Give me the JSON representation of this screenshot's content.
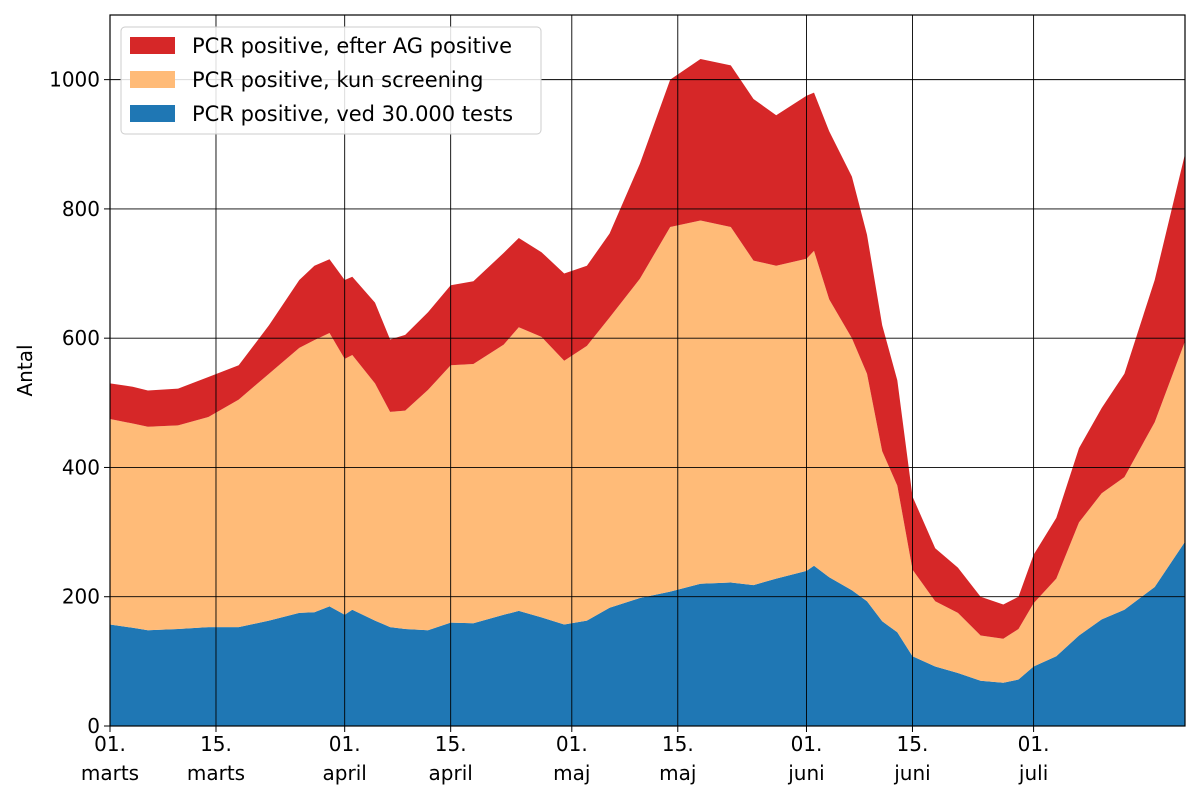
{
  "chart_data": {
    "type": "area",
    "stacked": true,
    "title": "",
    "xlabel": "",
    "ylabel": "Antal",
    "ylim": [
      0,
      1100
    ],
    "yticks": [
      0,
      200,
      400,
      600,
      800,
      1000
    ],
    "grid": true,
    "legend_position": "top-left",
    "xlim": [
      "2021-03-01",
      "2021-07-21"
    ],
    "xticks": [
      {
        "date": "2021-03-01",
        "line1": "01.",
        "line2": "marts"
      },
      {
        "date": "2021-03-15",
        "line1": "15.",
        "line2": "marts"
      },
      {
        "date": "2021-04-01",
        "line1": "01.",
        "line2": "april"
      },
      {
        "date": "2021-04-15",
        "line1": "15.",
        "line2": "april"
      },
      {
        "date": "2021-05-01",
        "line1": "01.",
        "line2": "maj"
      },
      {
        "date": "2021-05-15",
        "line1": "15.",
        "line2": "maj"
      },
      {
        "date": "2021-06-01",
        "line1": "01.",
        "line2": "juni"
      },
      {
        "date": "2021-06-15",
        "line1": "15.",
        "line2": "juni"
      },
      {
        "date": "2021-07-01",
        "line1": "01.",
        "line2": "juli"
      }
    ],
    "series": [
      {
        "name": "PCR positive, ved 30.000 tests",
        "color": "#1f77b4",
        "points": [
          [
            "2021-03-01",
            157
          ],
          [
            "2021-03-04",
            152
          ],
          [
            "2021-03-06",
            148
          ],
          [
            "2021-03-10",
            150
          ],
          [
            "2021-03-14",
            153
          ],
          [
            "2021-03-18",
            153
          ],
          [
            "2021-03-22",
            163
          ],
          [
            "2021-03-26",
            175
          ],
          [
            "2021-03-28",
            176
          ],
          [
            "2021-03-30",
            185
          ],
          [
            "2021-04-01",
            172
          ],
          [
            "2021-04-02",
            180
          ],
          [
            "2021-04-05",
            163
          ],
          [
            "2021-04-07",
            153
          ],
          [
            "2021-04-09",
            150
          ],
          [
            "2021-04-12",
            148
          ],
          [
            "2021-04-15",
            160
          ],
          [
            "2021-04-18",
            159
          ],
          [
            "2021-04-22",
            172
          ],
          [
            "2021-04-24",
            178
          ],
          [
            "2021-04-27",
            168
          ],
          [
            "2021-04-30",
            157
          ],
          [
            "2021-05-03",
            163
          ],
          [
            "2021-05-06",
            183
          ],
          [
            "2021-05-10",
            198
          ],
          [
            "2021-05-14",
            208
          ],
          [
            "2021-05-18",
            220
          ],
          [
            "2021-05-22",
            222
          ],
          [
            "2021-05-25",
            218
          ],
          [
            "2021-05-28",
            228
          ],
          [
            "2021-06-01",
            240
          ],
          [
            "2021-06-02",
            248
          ],
          [
            "2021-06-04",
            230
          ],
          [
            "2021-06-07",
            210
          ],
          [
            "2021-06-09",
            193
          ],
          [
            "2021-06-11",
            162
          ],
          [
            "2021-06-13",
            145
          ],
          [
            "2021-06-15",
            108
          ],
          [
            "2021-06-18",
            92
          ],
          [
            "2021-06-21",
            82
          ],
          [
            "2021-06-24",
            70
          ],
          [
            "2021-06-27",
            67
          ],
          [
            "2021-06-29",
            72
          ],
          [
            "2021-07-01",
            92
          ],
          [
            "2021-07-04",
            108
          ],
          [
            "2021-07-07",
            140
          ],
          [
            "2021-07-10",
            165
          ],
          [
            "2021-07-13",
            180
          ],
          [
            "2021-07-17",
            215
          ],
          [
            "2021-07-21",
            285
          ]
        ]
      },
      {
        "name": "PCR positive, kun screening",
        "color": "#ffbb78",
        "points": [
          [
            "2021-03-01",
            475
          ],
          [
            "2021-03-04",
            468
          ],
          [
            "2021-03-06",
            463
          ],
          [
            "2021-03-10",
            465
          ],
          [
            "2021-03-14",
            478
          ],
          [
            "2021-03-18",
            505
          ],
          [
            "2021-03-22",
            545
          ],
          [
            "2021-03-26",
            585
          ],
          [
            "2021-03-28",
            597
          ],
          [
            "2021-03-30",
            608
          ],
          [
            "2021-04-01",
            568
          ],
          [
            "2021-04-02",
            574
          ],
          [
            "2021-04-05",
            530
          ],
          [
            "2021-04-07",
            486
          ],
          [
            "2021-04-09",
            488
          ],
          [
            "2021-04-12",
            520
          ],
          [
            "2021-04-15",
            558
          ],
          [
            "2021-04-18",
            560
          ],
          [
            "2021-04-22",
            590
          ],
          [
            "2021-04-24",
            617
          ],
          [
            "2021-04-27",
            602
          ],
          [
            "2021-04-30",
            565
          ],
          [
            "2021-05-03",
            588
          ],
          [
            "2021-05-06",
            632
          ],
          [
            "2021-05-10",
            692
          ],
          [
            "2021-05-14",
            772
          ],
          [
            "2021-05-18",
            782
          ],
          [
            "2021-05-22",
            772
          ],
          [
            "2021-05-25",
            720
          ],
          [
            "2021-05-28",
            712
          ],
          [
            "2021-06-01",
            723
          ],
          [
            "2021-06-02",
            735
          ],
          [
            "2021-06-04",
            660
          ],
          [
            "2021-06-07",
            600
          ],
          [
            "2021-06-09",
            545
          ],
          [
            "2021-06-11",
            425
          ],
          [
            "2021-06-13",
            372
          ],
          [
            "2021-06-15",
            242
          ],
          [
            "2021-06-18",
            193
          ],
          [
            "2021-06-21",
            175
          ],
          [
            "2021-06-24",
            140
          ],
          [
            "2021-06-27",
            135
          ],
          [
            "2021-06-29",
            150
          ],
          [
            "2021-07-01",
            190
          ],
          [
            "2021-07-04",
            228
          ],
          [
            "2021-07-07",
            315
          ],
          [
            "2021-07-10",
            360
          ],
          [
            "2021-07-13",
            385
          ],
          [
            "2021-07-17",
            470
          ],
          [
            "2021-07-21",
            595
          ]
        ]
      },
      {
        "name": "PCR positive, efter AG positive",
        "color": "#d62728",
        "points": [
          [
            "2021-03-01",
            530
          ],
          [
            "2021-03-04",
            525
          ],
          [
            "2021-03-06",
            519
          ],
          [
            "2021-03-10",
            522
          ],
          [
            "2021-03-14",
            540
          ],
          [
            "2021-03-18",
            558
          ],
          [
            "2021-03-22",
            620
          ],
          [
            "2021-03-26",
            690
          ],
          [
            "2021-03-28",
            712
          ],
          [
            "2021-03-30",
            722
          ],
          [
            "2021-04-01",
            690
          ],
          [
            "2021-04-02",
            695
          ],
          [
            "2021-04-05",
            655
          ],
          [
            "2021-04-07",
            598
          ],
          [
            "2021-04-09",
            605
          ],
          [
            "2021-04-12",
            640
          ],
          [
            "2021-04-15",
            682
          ],
          [
            "2021-04-18",
            688
          ],
          [
            "2021-04-22",
            732
          ],
          [
            "2021-04-24",
            755
          ],
          [
            "2021-04-27",
            733
          ],
          [
            "2021-04-30",
            700
          ],
          [
            "2021-05-03",
            712
          ],
          [
            "2021-05-06",
            762
          ],
          [
            "2021-05-10",
            870
          ],
          [
            "2021-05-14",
            1000
          ],
          [
            "2021-05-18",
            1032
          ],
          [
            "2021-05-22",
            1022
          ],
          [
            "2021-05-25",
            970
          ],
          [
            "2021-05-28",
            945
          ],
          [
            "2021-06-01",
            975
          ],
          [
            "2021-06-02",
            980
          ],
          [
            "2021-06-04",
            920
          ],
          [
            "2021-06-07",
            850
          ],
          [
            "2021-06-09",
            760
          ],
          [
            "2021-06-11",
            620
          ],
          [
            "2021-06-13",
            535
          ],
          [
            "2021-06-15",
            355
          ],
          [
            "2021-06-18",
            275
          ],
          [
            "2021-06-21",
            245
          ],
          [
            "2021-06-24",
            200
          ],
          [
            "2021-06-27",
            188
          ],
          [
            "2021-06-29",
            200
          ],
          [
            "2021-07-01",
            265
          ],
          [
            "2021-07-04",
            322
          ],
          [
            "2021-07-07",
            430
          ],
          [
            "2021-07-10",
            492
          ],
          [
            "2021-07-13",
            545
          ],
          [
            "2021-07-17",
            690
          ],
          [
            "2021-07-21",
            885
          ]
        ]
      }
    ]
  }
}
